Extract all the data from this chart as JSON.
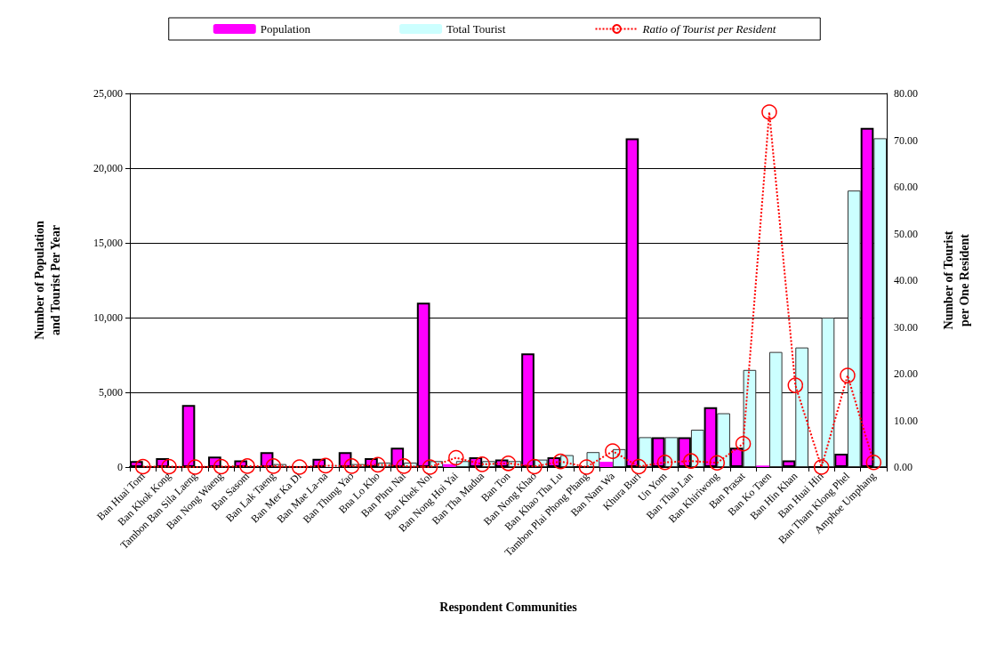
{
  "chart_data": {
    "type": "bar",
    "xlabel": "Respondent Communities",
    "ylabel": "Number of Population\nand Tourist Per Year",
    "y2label": "Number of Tourist\nper One Resident",
    "categories": [
      "Ban Huai Tom",
      "Ban Khok Kong",
      "Tambon Ban Sila Laeng",
      "Ban Nong Waeng",
      "Ban Sasom",
      "Ban Lak Taeng",
      "Ban Mer Ka Di",
      "Ban Mae La-na",
      "Ban Thung Yao",
      "Bna Lo Kho",
      "Ban Phru Nai",
      "Ban Khek Noi",
      "Ban Nong Hoi Yai",
      "Ban Tha Madua",
      "Ban Ton",
      "Ban Nong Khao",
      "Ban Khao Tha Lu",
      "Tambon Plai Phong Phang",
      "Ban Nam Wa",
      "Khura Buri",
      "Un Yom",
      "Ban Thab Lan",
      "Ban Khiriwong",
      "Ban Prasat",
      "Ban Ko Taen",
      "Ban Hin Khan",
      "Ban Huai Hin",
      "Ban Tham Klong Phel",
      "Amphoe Umphang"
    ],
    "series": [
      {
        "name": "Population",
        "color": "#ff00ff",
        "values": [
          400,
          600,
          4150,
          700,
          450,
          1000,
          0,
          550,
          1000,
          600,
          1300,
          11000,
          200,
          650,
          500,
          7600,
          650,
          0,
          350,
          22000,
          2000,
          2000,
          4000,
          1300,
          100,
          450,
          0,
          900,
          22700
        ]
      },
      {
        "name": "Total Tourist",
        "color": "#ccffff",
        "values": [
          null,
          null,
          null,
          null,
          null,
          200,
          null,
          150,
          200,
          300,
          300,
          400,
          400,
          400,
          400,
          500,
          800,
          1000,
          1200,
          2000,
          2000,
          2500,
          3600,
          6500,
          7700,
          8000,
          10000,
          18500,
          22000
        ]
      },
      {
        "name": "Ratio of Tourist per Resident",
        "type": "line",
        "axis": "y2",
        "color": "#ff0000",
        "values": [
          0.1,
          0.1,
          0,
          0.1,
          0.2,
          0.2,
          0,
          0.3,
          0.2,
          0.5,
          0.2,
          0,
          2.0,
          0.6,
          0.8,
          0.1,
          1.2,
          0,
          3.4,
          0.1,
          1.0,
          1.3,
          0.9,
          5.0,
          76,
          17.5,
          0,
          19.6,
          1.0
        ]
      }
    ],
    "ylim": [
      0,
      25000
    ],
    "yticks": [
      0,
      {
        "value": 5000,
        "label": "5,000"
      },
      {
        "value": 10000,
        "label": "10,000"
      },
      {
        "value": 15000,
        "label": "15,000"
      },
      {
        "value": 20000,
        "label": "20,000"
      },
      {
        "value": 25000,
        "label": "25,000"
      }
    ],
    "y2lim": [
      0,
      80
    ],
    "y2ticks": [
      {
        "value": 0,
        "label": "0.00"
      },
      {
        "value": 10,
        "label": "10.00"
      },
      {
        "value": 20,
        "label": "20.00"
      },
      {
        "value": 30,
        "label": "30.00"
      },
      {
        "value": 40,
        "label": "40.00"
      },
      {
        "value": 50,
        "label": "50.00"
      },
      {
        "value": 60,
        "label": "60.00"
      },
      {
        "value": 70,
        "label": "70.00"
      },
      {
        "value": 80,
        "label": "80.00"
      }
    ],
    "grid": "y",
    "legend": "top",
    "marker": "circle",
    "line_style": "dotted"
  }
}
